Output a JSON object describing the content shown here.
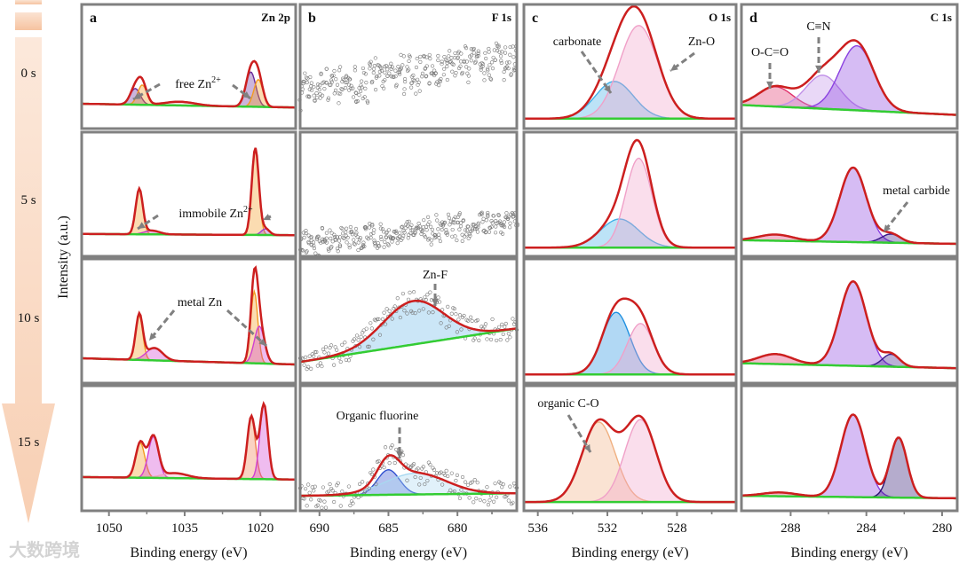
{
  "watermark": "大数跨境",
  "chart_data": {
    "type": "line",
    "title": "",
    "ylabel": "Intensity (a.u.)",
    "time_labels": [
      "0 s",
      "5 s",
      "10 s",
      "15 s"
    ],
    "colors": {
      "envelope": "#cc1f1f",
      "background": "#33cc33",
      "frame": "#808080",
      "arrow": "#f5c9a8"
    },
    "panels": [
      {
        "letter": "a",
        "title": "Zn 2p",
        "xlabel": "Binding energy (eV)",
        "xlim": [
          1055.4,
          1013
        ],
        "xticks": [
          1050,
          1035,
          1020
        ],
        "rows": [
          {
            "baseline": [
              0.2,
              0.17
            ],
            "components": [
              {
                "c": 1044.8,
                "h": 0.13,
                "s": 1.0,
                "color": "#6a2a9a"
              },
              {
                "c": 1043.4,
                "h": 0.16,
                "s": 0.9,
                "color": "#f39a20"
              },
              {
                "c": 1036.0,
                "h": 0.03,
                "s": 3.0,
                "color": "#f0a0c0"
              },
              {
                "c": 1021.9,
                "h": 0.28,
                "s": 1.0,
                "color": "#6a2a9a"
              },
              {
                "c": 1020.4,
                "h": 0.22,
                "s": 0.9,
                "color": "#f39a20"
              }
            ]
          },
          {
            "baseline": [
              0.18,
              0.17
            ],
            "components": [
              {
                "c": 1044.0,
                "h": 0.36,
                "s": 0.7,
                "color": "#f39a20"
              },
              {
                "c": 1041.5,
                "h": 0.03,
                "s": 1.5,
                "color": "#c040c0"
              },
              {
                "c": 1021.0,
                "h": 0.7,
                "s": 0.7,
                "color": "#f39a20"
              },
              {
                "c": 1019.0,
                "h": 0.05,
                "s": 0.8,
                "color": "#a040d0"
              }
            ]
          },
          {
            "baseline": [
              0.2,
              0.15
            ],
            "components": [
              {
                "c": 1044.0,
                "h": 0.36,
                "s": 0.7,
                "color": "#f39a20"
              },
              {
                "c": 1041.0,
                "h": 0.1,
                "s": 1.6,
                "color": "#d040d0"
              },
              {
                "c": 1021.2,
                "h": 0.58,
                "s": 0.7,
                "color": "#f39a20"
              },
              {
                "c": 1020.2,
                "h": 0.3,
                "s": 1.0,
                "color": "#d040d0"
              }
            ]
          },
          {
            "baseline": [
              0.27,
              0.25
            ],
            "components": [
              {
                "c": 1043.8,
                "h": 0.28,
                "s": 0.9,
                "color": "#f39a20"
              },
              {
                "c": 1041.2,
                "h": 0.33,
                "s": 1.0,
                "color": "#d040d0"
              },
              {
                "c": 1037.0,
                "h": 0.04,
                "s": 2.5,
                "color": "#f0a0c0"
              },
              {
                "c": 1021.8,
                "h": 0.5,
                "s": 0.8,
                "color": "#f08050"
              },
              {
                "c": 1019.3,
                "h": 0.6,
                "s": 0.8,
                "color": "#d040d0"
              }
            ]
          }
        ],
        "annotations": [
          {
            "row": 0,
            "text": "free Zn",
            "sup": "2+"
          },
          {
            "row": 1,
            "text": "immobile Zn",
            "sup": "2+"
          },
          {
            "row": 2,
            "text": "metal Zn",
            "sup": ""
          }
        ]
      },
      {
        "letter": "b",
        "title": "F 1s",
        "xlabel": "Binding energy (eV)",
        "xlim": [
          691.4,
          675.7
        ],
        "xticks": [
          690,
          685,
          680
        ],
        "rows": [
          {
            "scatter_only": true,
            "trend": [
              0.3,
              0.58
            ],
            "noise": 0.12
          },
          {
            "scatter_only": true,
            "trend": [
              0.1,
              0.28
            ],
            "noise": 0.08
          },
          {
            "baseline": [
              0.17,
              0.44
            ],
            "components": [
              {
                "c": 683.2,
                "h": 0.35,
                "s": 2.2,
                "color": "#6ab8e8"
              }
            ]
          },
          {
            "baseline": [
              0.12,
              0.14
            ],
            "components": [
              {
                "c": 685.0,
                "h": 0.2,
                "s": 0.8,
                "color": "#3050d0"
              },
              {
                "c": 683.0,
                "h": 0.17,
                "s": 2.2,
                "color": "#a8d8f0"
              }
            ]
          }
        ],
        "annotations": [
          {
            "row": 2,
            "text": "Zn-F",
            "sup": ""
          },
          {
            "row": 3,
            "text": "Organic fluorine",
            "sup": ""
          }
        ]
      },
      {
        "letter": "c",
        "title": "O 1s",
        "xlabel": "Binding energy (eV)",
        "xlim": [
          536.8,
          524.6
        ],
        "xticks": [
          536,
          532,
          528
        ],
        "rows": [
          {
            "baseline": [
              0.08,
              0.08
            ],
            "components": [
              {
                "c": 531.6,
                "h": 0.3,
                "s": 1.1,
                "color": "#40b0e8"
              },
              {
                "c": 530.2,
                "h": 0.75,
                "s": 1.1,
                "color": "#f0a0c8"
              }
            ]
          },
          {
            "baseline": [
              0.07,
              0.07
            ],
            "components": [
              {
                "c": 531.3,
                "h": 0.23,
                "s": 1.1,
                "color": "#40b0e8"
              },
              {
                "c": 530.2,
                "h": 0.72,
                "s": 0.75,
                "color": "#f0a0c8"
              }
            ]
          },
          {
            "baseline": [
              0.07,
              0.07
            ],
            "components": [
              {
                "c": 531.5,
                "h": 0.5,
                "s": 0.8,
                "color": "#2090e0"
              },
              {
                "c": 530.1,
                "h": 0.41,
                "s": 0.75,
                "color": "#f0a0c8"
              }
            ]
          },
          {
            "baseline": [
              0.07,
              0.07
            ],
            "components": [
              {
                "c": 532.5,
                "h": 0.64,
                "s": 0.95,
                "color": "#f0b080"
              },
              {
                "c": 530.1,
                "h": 0.66,
                "s": 0.9,
                "color": "#f0a0c8"
              }
            ]
          }
        ],
        "annotations": [
          {
            "row": 0,
            "text": "carbonate",
            "sup": ""
          },
          {
            "row": 0,
            "text": "Zn-O",
            "sup": ""
          },
          {
            "row": 3,
            "text": "organic C-O",
            "sup": ""
          }
        ]
      },
      {
        "letter": "d",
        "title": "C 1s",
        "xlabel": "Binding energy (eV)",
        "xlim": [
          290.6,
          279.2
        ],
        "xticks": [
          288,
          284,
          280
        ],
        "rows": [
          {
            "baseline": [
              0.19,
              0.11
            ],
            "components": [
              {
                "c": 288.8,
                "h": 0.16,
                "s": 0.9,
                "color": "#e0306a"
              },
              {
                "c": 286.3,
                "h": 0.27,
                "s": 0.9,
                "color": "#c090e8"
              },
              {
                "c": 284.5,
                "h": 0.52,
                "s": 0.9,
                "color": "#8a40e0"
              }
            ]
          },
          {
            "baseline": [
              0.13,
              0.1
            ],
            "components": [
              {
                "c": 288.8,
                "h": 0.05,
                "s": 0.9,
                "color": "#e0306a"
              },
              {
                "c": 284.7,
                "h": 0.6,
                "s": 0.7,
                "color": "#8a40e0"
              },
              {
                "c": 282.7,
                "h": 0.07,
                "s": 0.5,
                "color": "#3a1a8a"
              }
            ]
          },
          {
            "baseline": [
              0.16,
              0.12
            ],
            "components": [
              {
                "c": 288.8,
                "h": 0.08,
                "s": 0.9,
                "color": "#e0306a"
              },
              {
                "c": 284.7,
                "h": 0.68,
                "s": 0.7,
                "color": "#8a40e0"
              },
              {
                "c": 282.7,
                "h": 0.1,
                "s": 0.45,
                "color": "#3a1a8a"
              }
            ]
          },
          {
            "baseline": [
              0.12,
              0.1
            ],
            "components": [
              {
                "c": 288.6,
                "h": 0.03,
                "s": 0.9,
                "color": "#e0306a"
              },
              {
                "c": 284.7,
                "h": 0.66,
                "s": 0.65,
                "color": "#8a40e0"
              },
              {
                "c": 282.3,
                "h": 0.48,
                "s": 0.45,
                "color": "#2a1070"
              }
            ]
          }
        ],
        "annotations": [
          {
            "row": 0,
            "text": "O-C=O",
            "sup": ""
          },
          {
            "row": 0,
            "text": "C≡N",
            "sup": ""
          },
          {
            "row": 1,
            "text": "metal carbide",
            "sup": ""
          }
        ]
      }
    ]
  }
}
